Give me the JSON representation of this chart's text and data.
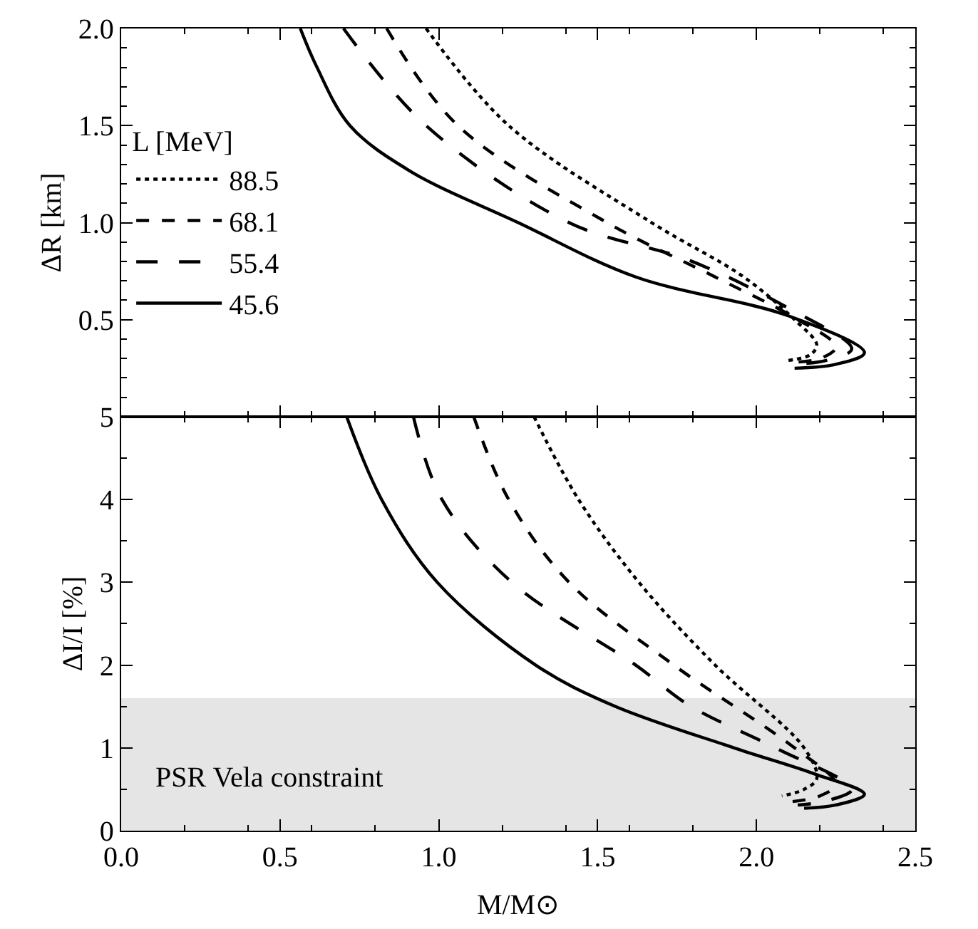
{
  "chart_data": [
    {
      "type": "line",
      "ylabel": "ΔR [km]",
      "legend_title": "L [MeV]",
      "legend": "left",
      "xlim": [
        0,
        2.5
      ],
      "xticks": [
        0,
        0.5,
        1,
        1.5,
        2,
        2.5
      ],
      "ylim": [
        0,
        2
      ],
      "yticks": [
        0.5,
        {
          "value": 1,
          "label": "1.0"
        },
        1.5,
        {
          "value": 2,
          "label": "2.0"
        }
      ],
      "tick_labels": "y",
      "grid": false,
      "series": [
        {
          "name": "88.5",
          "color": "#000000",
          "line_style": "dotted",
          "x": [
            0.96,
            1.22,
            1.67,
            1.96,
            2.12,
            2.19,
            2.17,
            2.1
          ],
          "values": [
            2.0,
            1.5,
            1.0,
            0.72,
            0.5,
            0.37,
            0.32,
            0.29
          ]
        },
        {
          "name": "68.1",
          "color": "#000000",
          "line_style": "dashed",
          "x": [
            0.836,
            1.06,
            1.53,
            1.87,
            2.12,
            2.25,
            2.2,
            2.1
          ],
          "values": [
            2.0,
            1.5,
            1.0,
            0.72,
            0.51,
            0.36,
            0.3,
            0.28
          ]
        },
        {
          "name": "55.4",
          "color": "#000000",
          "line_style": "longdash",
          "x": [
            0.7,
            0.96,
            1.41,
            1.79,
            2.1,
            2.3,
            2.22,
            2.11
          ],
          "values": [
            2.0,
            1.5,
            1.0,
            0.805,
            0.56,
            0.35,
            0.29,
            0.27
          ]
        },
        {
          "name": "45.6",
          "color": "#000000",
          "line_style": "solid",
          "x": [
            0.564,
            0.615,
            0.72,
            0.91,
            1.25,
            1.62,
            2.1,
            2.34,
            2.25,
            2.12
          ],
          "values": [
            2.0,
            1.805,
            1.5,
            1.265,
            1.0,
            0.72,
            0.52,
            0.33,
            0.27,
            0.25
          ]
        }
      ]
    },
    {
      "type": "line",
      "xlabel": "M/M⊙",
      "ylabel": "ΔI/I [%]",
      "xlim": [
        0,
        2.5
      ],
      "xticks": [
        {
          "value": 0,
          "label": "0.0"
        },
        0.5,
        {
          "value": 1,
          "label": "1.0"
        },
        1.5,
        {
          "value": 2,
          "label": "2.0"
        },
        2.5
      ],
      "ylim": [
        0,
        5
      ],
      "yticks": [
        0,
        1,
        2,
        3,
        4,
        5
      ],
      "grid": false,
      "legend": false,
      "bands": [
        {
          "axis": "y",
          "from": 0,
          "to": 1.6,
          "label": "PSR Vela constraint",
          "color": "#e5e5e5"
        }
      ],
      "series": [
        {
          "color": "#000000",
          "line_style": "dotted",
          "x": [
            1.3,
            1.44,
            1.63,
            1.87,
            2.15,
            2.19,
            2.15,
            2.08
          ],
          "values": [
            5,
            4,
            3,
            2,
            1,
            0.63,
            0.5,
            0.42
          ]
        },
        {
          "color": "#000000",
          "line_style": "dashed",
          "x": [
            1.11,
            1.22,
            1.41,
            1.74,
            2.12,
            2.25,
            2.2,
            2.11
          ],
          "values": [
            5,
            4,
            3,
            2,
            1,
            0.56,
            0.42,
            0.35
          ]
        },
        {
          "color": "#000000",
          "line_style": "longdash",
          "x": [
            0.92,
            1.01,
            1.23,
            1.62,
            1.79,
            2.06,
            2.3,
            2.22,
            2.13
          ],
          "values": [
            5,
            4,
            3,
            2,
            1.51,
            1,
            0.5,
            0.36,
            0.31
          ]
        },
        {
          "color": "#000000",
          "line_style": "solid",
          "x": [
            0.71,
            0.82,
            0.995,
            1.305,
            1.55,
            1.93,
            2.18,
            2.34,
            2.25,
            2.15
          ],
          "values": [
            5,
            4,
            3,
            2,
            1.51,
            1.0,
            0.69,
            0.44,
            0.31,
            0.27
          ]
        }
      ]
    }
  ]
}
